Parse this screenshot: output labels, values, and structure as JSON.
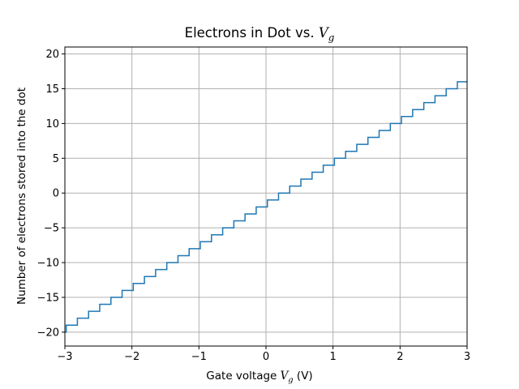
{
  "chart_data": {
    "type": "line",
    "title": {
      "prefix": "Electrons in Dot vs. ",
      "var": "V",
      "sub": "g"
    },
    "xlabel": {
      "prefix": "Gate voltage ",
      "var": "V",
      "sub": "g",
      "suffix": " (V)"
    },
    "ylabel": "Number of electrons stored into the dot",
    "xlim": [
      -3,
      3
    ],
    "ylim": [
      -22,
      21
    ],
    "xticks": [
      -3,
      -2,
      -1,
      0,
      1,
      2,
      3
    ],
    "xtick_labels": [
      "−3",
      "−2",
      "−1",
      "0",
      "1",
      "2",
      "3"
    ],
    "yticks": [
      -20,
      -15,
      -10,
      -5,
      0,
      5,
      10,
      15,
      20
    ],
    "ytick_labels": [
      "−20",
      "−15",
      "−10",
      "−5",
      "0",
      "5",
      "10",
      "15",
      "20"
    ],
    "grid": true,
    "series": [
      {
        "name": "electrons",
        "style": "steps",
        "color": "#1f77b4",
        "x_start": -3,
        "x_end": 3,
        "step_width": 0.1667,
        "first_step_x": -2.98,
        "n_start": -20,
        "n_end": 18
      }
    ]
  }
}
